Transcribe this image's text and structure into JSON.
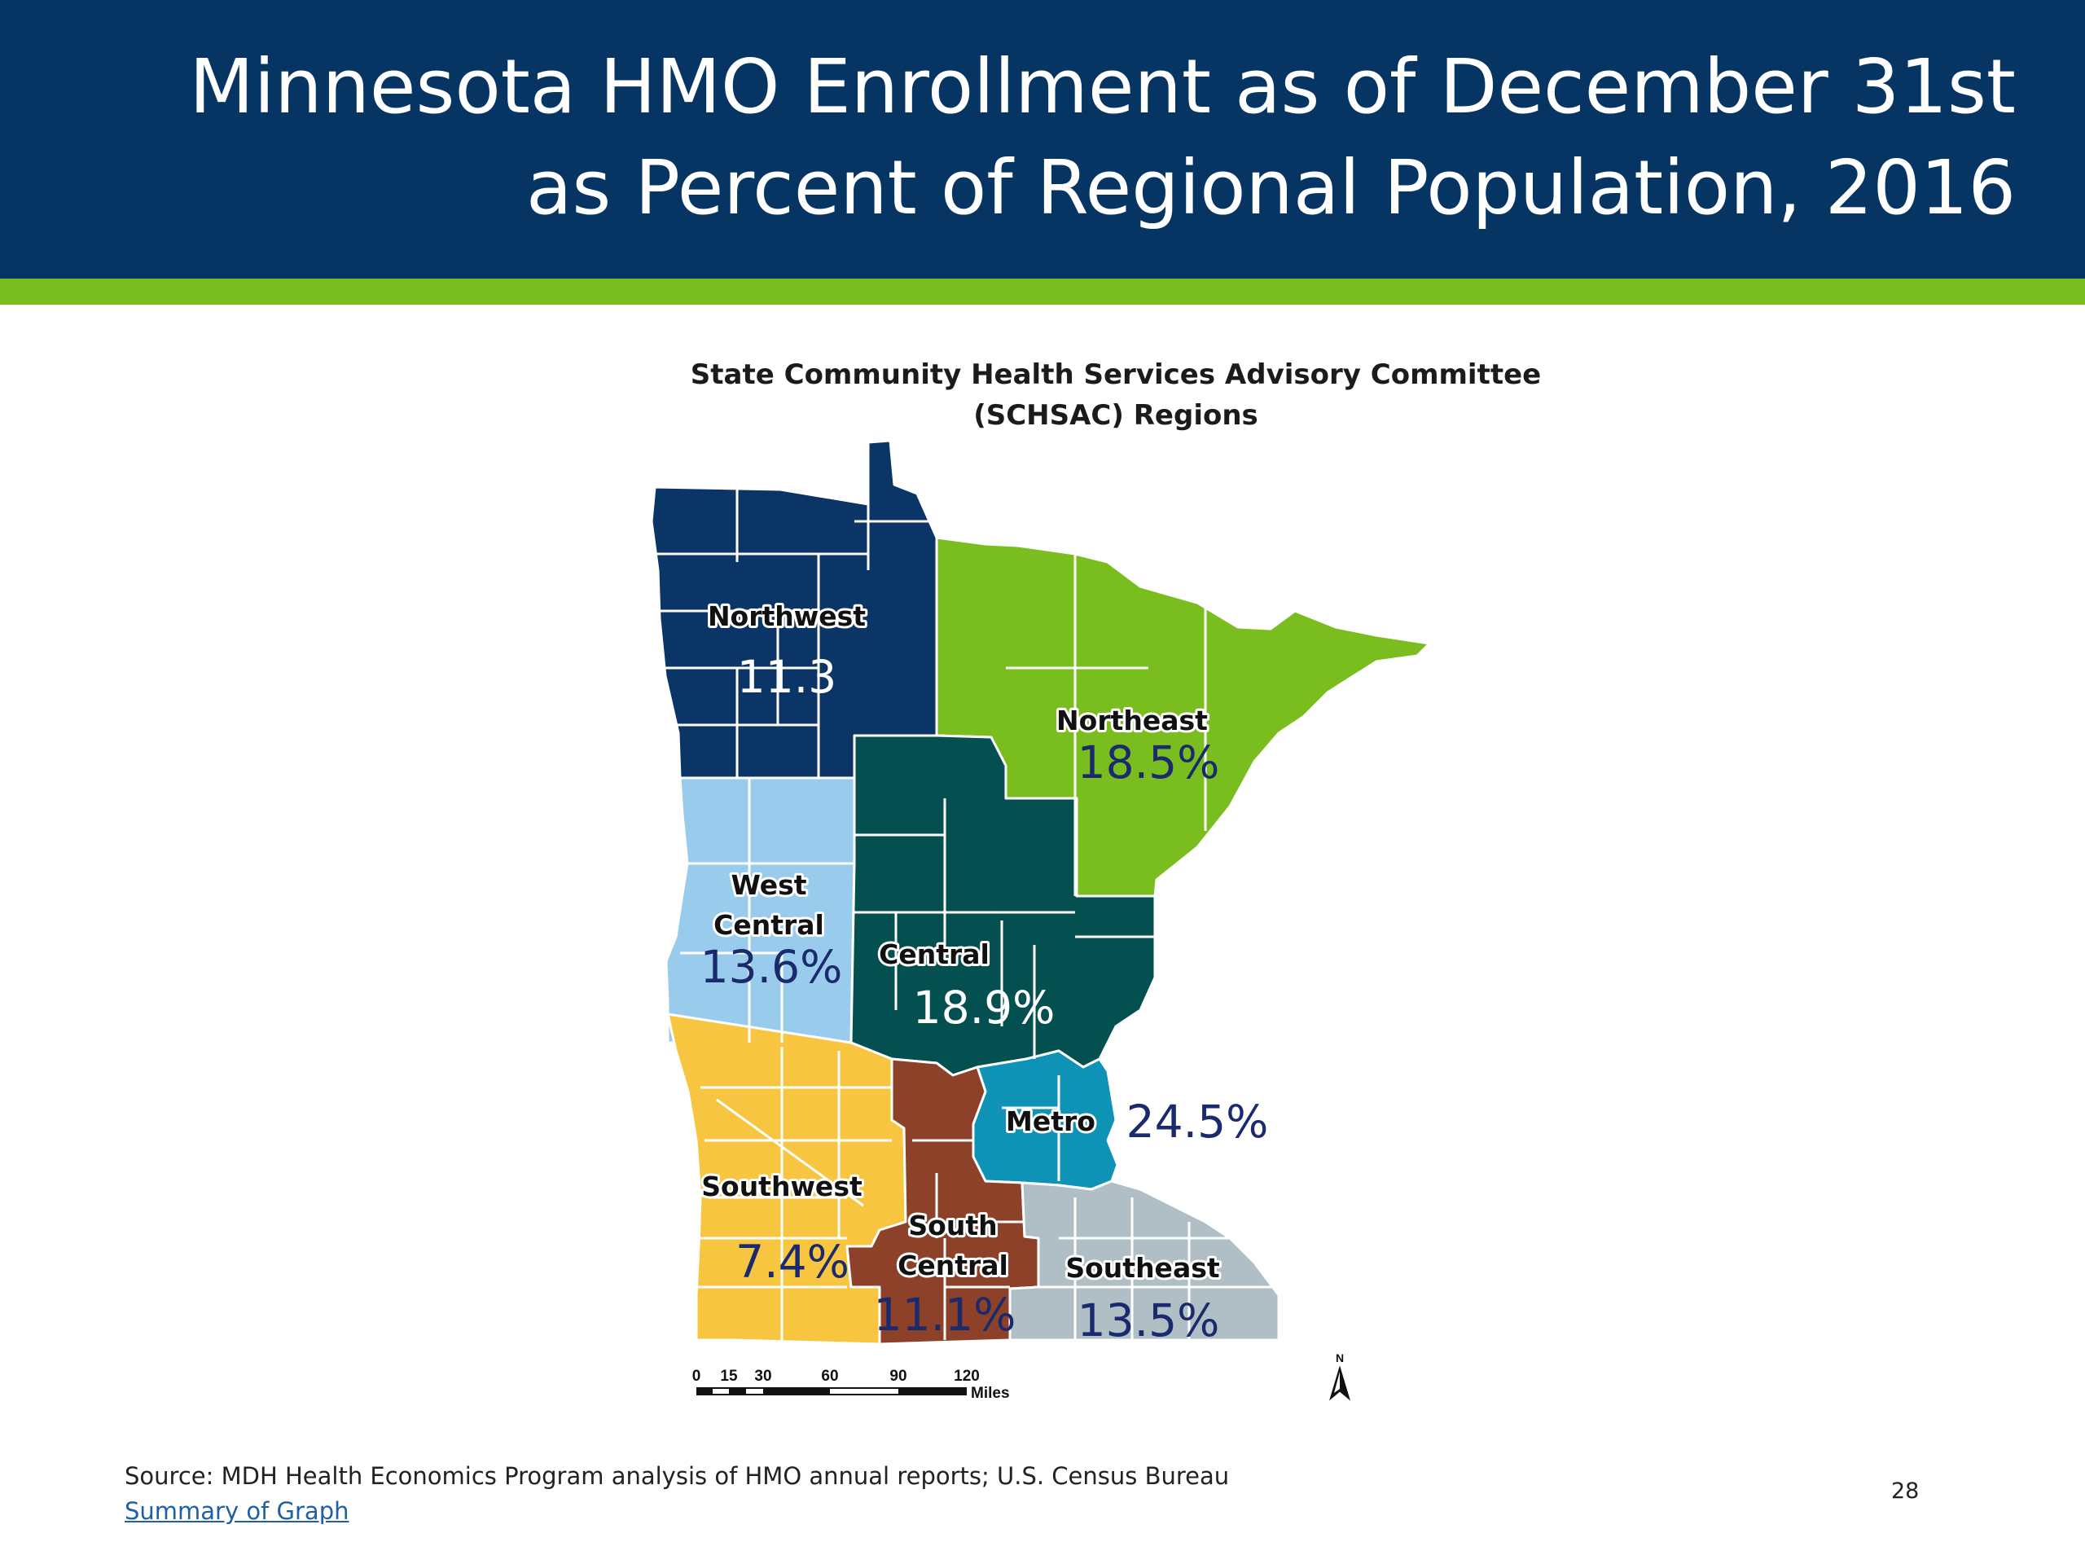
{
  "slide": {
    "title_line1": "Minnesota HMO Enrollment as of December 31st",
    "title_line2": "as Percent of Regional Population, 2016",
    "page_number": "28"
  },
  "map": {
    "title_line1": "State Community Health Services Advisory Committee",
    "title_line2": "(SCHSAC) Regions",
    "regions": [
      {
        "name": "Northwest",
        "value": "11.3",
        "color": "#0b3566"
      },
      {
        "name": "Northeast",
        "value": "18.5%",
        "color": "#79bd1f"
      },
      {
        "name": "West Central",
        "name_line1": "West",
        "name_line2": "Central",
        "value": "13.6%",
        "color": "#99cbec"
      },
      {
        "name": "Central",
        "value": "18.9%",
        "color": "#045050"
      },
      {
        "name": "Metro",
        "value": "24.5%",
        "color": "#0e93b7"
      },
      {
        "name": "Southwest",
        "value": "7.4%",
        "color": "#f7c540"
      },
      {
        "name": "South Central",
        "name_line1": "South",
        "name_line2": "Central",
        "value": "11.1%",
        "color": "#8c4128"
      },
      {
        "name": "Southeast",
        "value": "13.5%",
        "color": "#afbfc5"
      }
    ],
    "scale_bar": {
      "ticks": [
        "0",
        "15",
        "30",
        "60",
        "90",
        "120"
      ],
      "unit": "Miles"
    },
    "north_arrow": "N"
  },
  "footer": {
    "source": "Source: MDH Health Economics Program analysis of HMO annual reports; U.S. Census Bureau",
    "link": "Summary of Graph"
  },
  "colors": {
    "header_bg": "#063564",
    "accent_bar": "#79bd1f",
    "label_navy": "#1a2a6c"
  }
}
